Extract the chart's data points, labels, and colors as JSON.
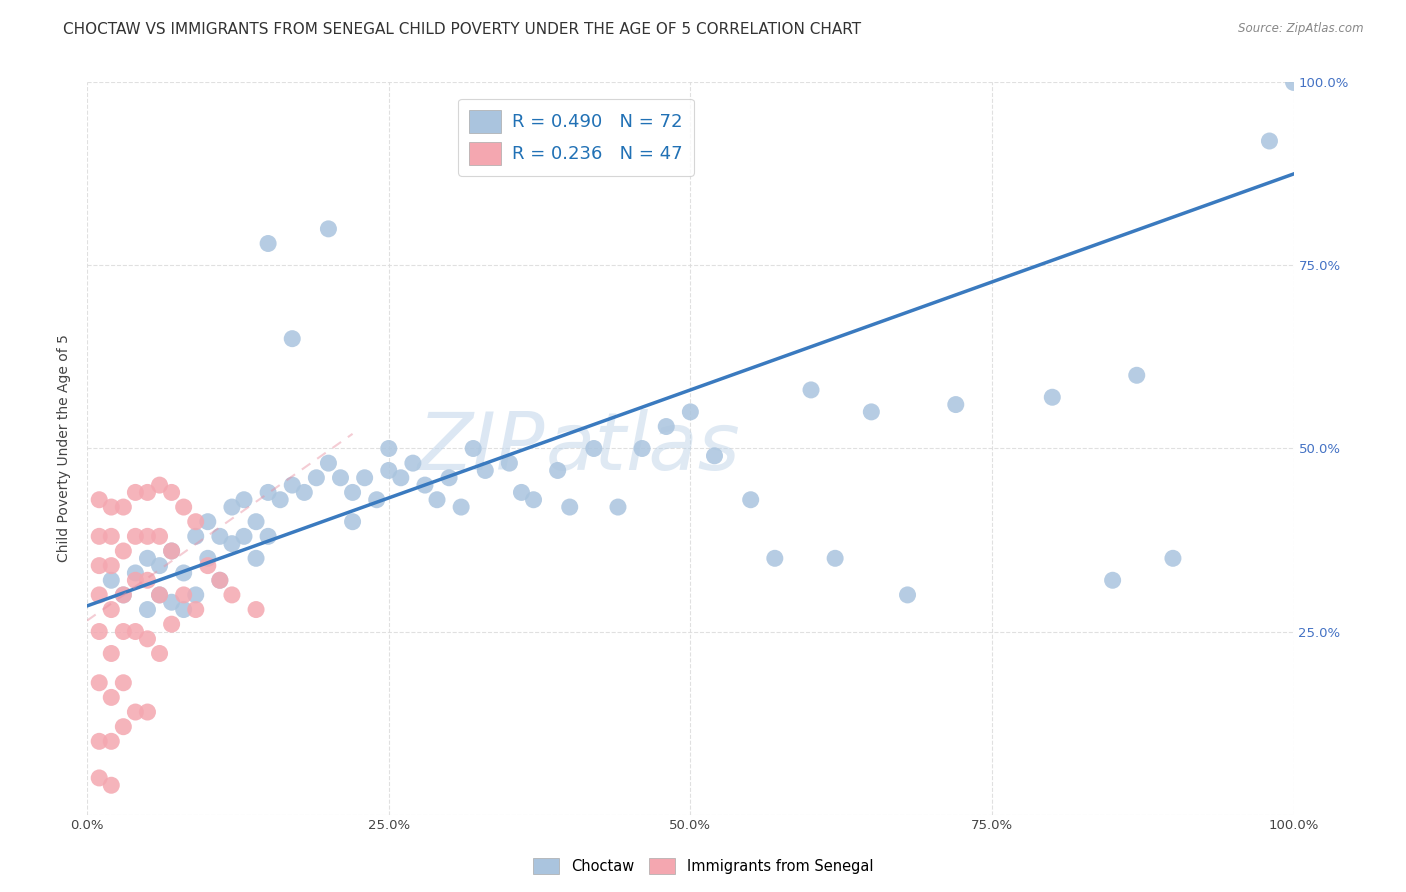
{
  "title": "CHOCTAW VS IMMIGRANTS FROM SENEGAL CHILD POVERTY UNDER THE AGE OF 5 CORRELATION CHART",
  "source": "Source: ZipAtlas.com",
  "ylabel": "Child Poverty Under the Age of 5",
  "xlim": [
    0,
    1.0
  ],
  "ylim": [
    0,
    1.0
  ],
  "xticks": [
    0.0,
    0.25,
    0.5,
    0.75,
    1.0
  ],
  "yticks": [
    0.0,
    0.25,
    0.5,
    0.75,
    1.0
  ],
  "xticklabels": [
    "0.0%",
    "25.0%",
    "50.0%",
    "75.0%",
    "100.0%"
  ],
  "right_yticklabels": [
    "25.0%",
    "50.0%",
    "75.0%",
    "100.0%"
  ],
  "watermark_zip": "ZIP",
  "watermark_atlas": "atlas",
  "blue_color": "#aac4de",
  "blue_line_color": "#3a7abf",
  "pink_color": "#f4a7b0",
  "pink_line_color": "#e88fa0",
  "legend_choctaw": "Choctaw",
  "legend_senegal": "Immigrants from Senegal",
  "background_color": "#ffffff",
  "grid_color": "#dddddd",
  "title_fontsize": 11,
  "label_fontsize": 10,
  "tick_fontsize": 9.5,
  "right_tick_color": "#4472c4",
  "blue_scatter_x": [
    0.02,
    0.03,
    0.04,
    0.05,
    0.05,
    0.06,
    0.06,
    0.07,
    0.07,
    0.08,
    0.08,
    0.09,
    0.09,
    0.1,
    0.1,
    0.11,
    0.11,
    0.12,
    0.12,
    0.13,
    0.13,
    0.14,
    0.14,
    0.15,
    0.15,
    0.16,
    0.17,
    0.18,
    0.19,
    0.2,
    0.21,
    0.22,
    0.22,
    0.23,
    0.24,
    0.25,
    0.26,
    0.27,
    0.28,
    0.29,
    0.3,
    0.31,
    0.32,
    0.33,
    0.35,
    0.36,
    0.37,
    0.39,
    0.4,
    0.42,
    0.44,
    0.46,
    0.48,
    0.5,
    0.52,
    0.55,
    0.57,
    0.6,
    0.62,
    0.65,
    0.68,
    0.72,
    0.8,
    0.85,
    0.87,
    0.9,
    0.2,
    0.15,
    0.17,
    0.25,
    0.98,
    1.0
  ],
  "blue_scatter_y": [
    0.32,
    0.3,
    0.33,
    0.35,
    0.28,
    0.34,
    0.3,
    0.36,
    0.29,
    0.33,
    0.28,
    0.38,
    0.3,
    0.4,
    0.35,
    0.38,
    0.32,
    0.37,
    0.42,
    0.38,
    0.43,
    0.4,
    0.35,
    0.44,
    0.38,
    0.43,
    0.45,
    0.44,
    0.46,
    0.48,
    0.46,
    0.44,
    0.4,
    0.46,
    0.43,
    0.47,
    0.46,
    0.48,
    0.45,
    0.43,
    0.46,
    0.42,
    0.5,
    0.47,
    0.48,
    0.44,
    0.43,
    0.47,
    0.42,
    0.5,
    0.42,
    0.5,
    0.53,
    0.55,
    0.49,
    0.43,
    0.35,
    0.58,
    0.35,
    0.55,
    0.3,
    0.56,
    0.57,
    0.32,
    0.6,
    0.35,
    0.8,
    0.78,
    0.65,
    0.5,
    0.92,
    1.0
  ],
  "pink_scatter_x": [
    0.01,
    0.01,
    0.01,
    0.01,
    0.01,
    0.01,
    0.01,
    0.01,
    0.02,
    0.02,
    0.02,
    0.02,
    0.02,
    0.02,
    0.02,
    0.02,
    0.03,
    0.03,
    0.03,
    0.03,
    0.03,
    0.03,
    0.04,
    0.04,
    0.04,
    0.04,
    0.04,
    0.05,
    0.05,
    0.05,
    0.05,
    0.05,
    0.06,
    0.06,
    0.06,
    0.06,
    0.07,
    0.07,
    0.07,
    0.08,
    0.08,
    0.09,
    0.09,
    0.1,
    0.11,
    0.12,
    0.14
  ],
  "pink_scatter_y": [
    0.43,
    0.38,
    0.34,
    0.3,
    0.25,
    0.18,
    0.1,
    0.05,
    0.42,
    0.38,
    0.34,
    0.28,
    0.22,
    0.16,
    0.1,
    0.04,
    0.42,
    0.36,
    0.3,
    0.25,
    0.18,
    0.12,
    0.44,
    0.38,
    0.32,
    0.25,
    0.14,
    0.44,
    0.38,
    0.32,
    0.24,
    0.14,
    0.45,
    0.38,
    0.3,
    0.22,
    0.44,
    0.36,
    0.26,
    0.42,
    0.3,
    0.4,
    0.28,
    0.34,
    0.32,
    0.3,
    0.28
  ],
  "blue_line_x": [
    0.0,
    1.0
  ],
  "blue_line_y": [
    0.285,
    0.875
  ],
  "pink_line_x": [
    0.0,
    0.22
  ],
  "pink_line_y": [
    0.265,
    0.52
  ]
}
